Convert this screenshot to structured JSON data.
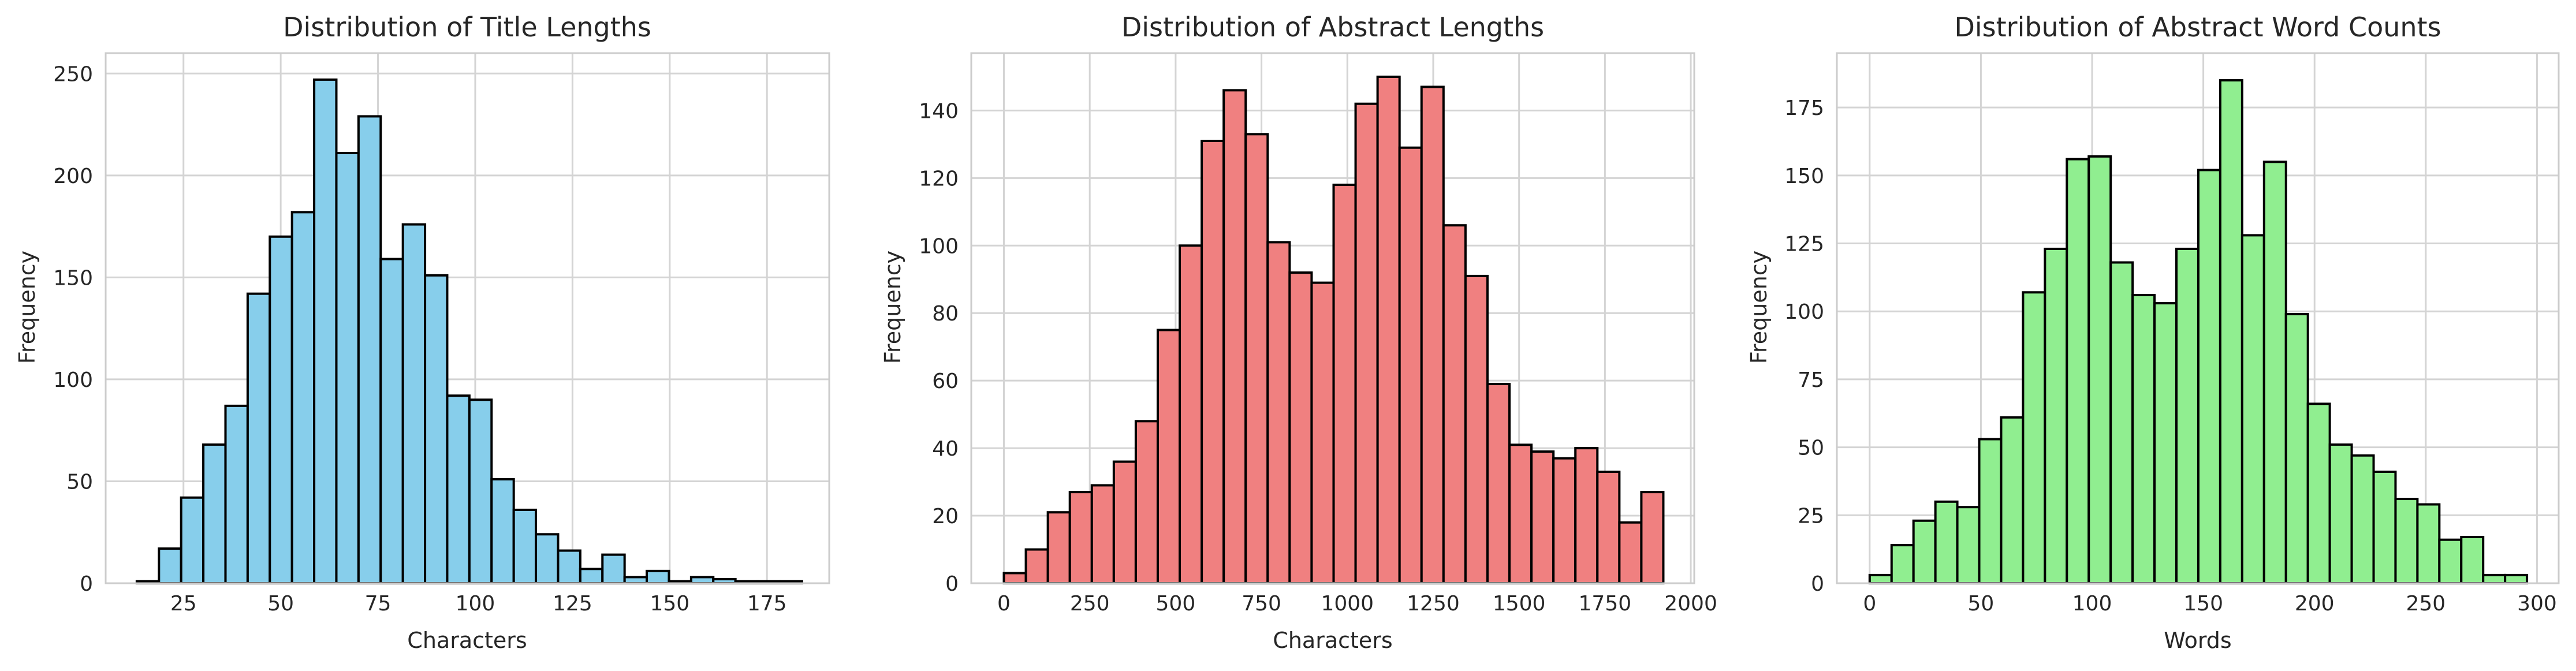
{
  "chart_data": [
    {
      "type": "bar",
      "title": "Distribution of Title Lengths",
      "xlabel": "Characters",
      "ylabel": "Frequency",
      "color": "#87ceeb",
      "edge_color": "#000000",
      "grid": true,
      "xlim": [
        5,
        191
      ],
      "ylim": [
        0,
        260
      ],
      "xticks": [
        25,
        50,
        75,
        100,
        125,
        150,
        175
      ],
      "yticks": [
        0,
        50,
        100,
        150,
        200,
        250
      ],
      "bin_edges": [
        13,
        18.7,
        24.4,
        30.1,
        35.8,
        41.5,
        47.2,
        52.9,
        58.6,
        64.3,
        70,
        75.7,
        81.4,
        87.1,
        92.8,
        98.5,
        104.2,
        109.9,
        115.6,
        121.3,
        127,
        132.7,
        138.4,
        144.1,
        149.8,
        155.5,
        161.2,
        166.9,
        172.6,
        178.3,
        184
      ],
      "values": [
        1,
        17,
        42,
        68,
        87,
        142,
        170,
        182,
        247,
        211,
        229,
        159,
        176,
        151,
        92,
        90,
        51,
        36,
        24,
        16,
        7,
        14,
        3,
        6,
        1,
        3,
        2,
        1,
        1,
        1
      ]
    },
    {
      "type": "bar",
      "title": "Distribution of Abstract Lengths",
      "xlabel": "Characters",
      "ylabel": "Frequency",
      "color": "#f08080",
      "edge_color": "#000000",
      "grid": true,
      "xlim": [
        -95,
        2010
      ],
      "ylim": [
        0,
        157
      ],
      "xticks": [
        0,
        250,
        500,
        750,
        1000,
        1250,
        1500,
        1750,
        2000
      ],
      "yticks": [
        0,
        20,
        40,
        60,
        80,
        100,
        120,
        140
      ],
      "bin_edges": [
        0,
        64,
        128,
        192,
        256,
        320,
        384,
        448,
        512,
        576,
        640,
        704,
        768,
        832,
        896,
        960,
        1024,
        1088,
        1152,
        1216,
        1280,
        1344,
        1408,
        1472,
        1536,
        1600,
        1664,
        1728,
        1792,
        1856,
        1920
      ],
      "values": [
        3,
        10,
        21,
        27,
        29,
        36,
        48,
        75,
        100,
        131,
        146,
        133,
        101,
        92,
        89,
        118,
        142,
        150,
        129,
        147,
        106,
        91,
        59,
        41,
        39,
        37,
        40,
        33,
        18,
        27
      ]
    },
    {
      "type": "bar",
      "title": "Distribution of Abstract Word Counts",
      "xlabel": "Words",
      "ylabel": "Frequency",
      "color": "#90ee90",
      "edge_color": "#000000",
      "grid": true,
      "xlim": [
        -14.75,
        309.75
      ],
      "ylim": [
        0,
        195
      ],
      "xticks": [
        0,
        50,
        100,
        150,
        200,
        250,
        300
      ],
      "yticks": [
        0,
        25,
        50,
        75,
        100,
        125,
        150,
        175
      ],
      "bin_edges": [
        0,
        9.85,
        19.7,
        29.55,
        39.4,
        49.25,
        59.1,
        68.95,
        78.8,
        88.65,
        98.5,
        108.35,
        118.2,
        128.05,
        137.9,
        147.75,
        157.6,
        167.45,
        177.3,
        187.15,
        197,
        206.85,
        216.7,
        226.55,
        236.4,
        246.25,
        256.1,
        265.95,
        275.8,
        285.65,
        295.5
      ],
      "values": [
        3,
        14,
        23,
        30,
        28,
        53,
        61,
        107,
        123,
        156,
        157,
        118,
        106,
        103,
        123,
        152,
        185,
        128,
        155,
        99,
        66,
        51,
        47,
        41,
        31,
        29,
        16,
        17,
        3,
        3
      ]
    }
  ]
}
